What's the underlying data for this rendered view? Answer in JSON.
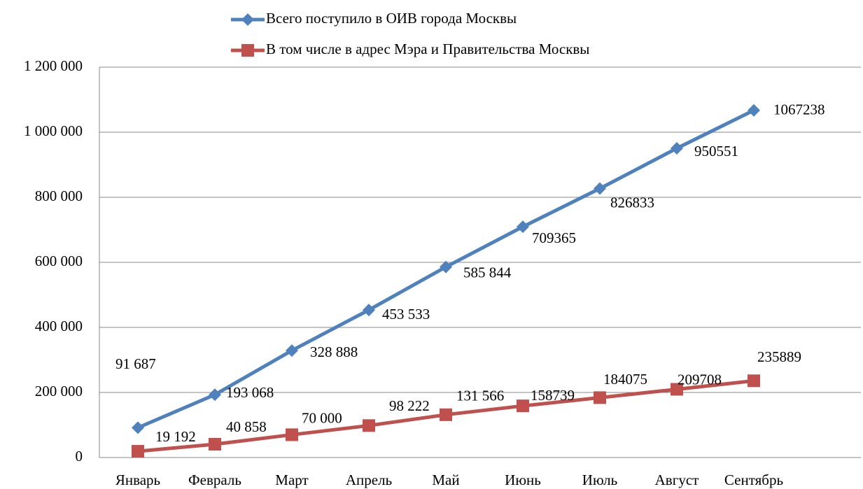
{
  "chart_data": {
    "type": "line",
    "categories": [
      "Январь",
      "Февраль",
      "Март",
      "Апрель",
      "Май",
      "Июнь",
      "Июль",
      "Август",
      "Сентябрь"
    ],
    "series": [
      {
        "name": "Всего поступило в ОИВ города Москвы",
        "color": "#4f81bd",
        "marker": "diamond",
        "values": [
          91687,
          193068,
          328888,
          453533,
          585844,
          709365,
          826833,
          950551,
          1067238
        ],
        "value_labels": [
          "91 687",
          "193 068",
          "328 888",
          "453 533",
          "585 844",
          "709365",
          "826833",
          "950551",
          "1067238"
        ]
      },
      {
        "name": "В том числе в адрес Мэра и Правительства Москвы",
        "color": "#c0504d",
        "marker": "square",
        "values": [
          19192,
          40858,
          70000,
          98222,
          131566,
          158739,
          184075,
          209708,
          235889
        ],
        "value_labels": [
          "19 192",
          "40 858",
          "70 000",
          "98 222",
          "131 566",
          "158739",
          "184075",
          "209708",
          "235889"
        ]
      }
    ],
    "ylim": [
      0,
      1200000
    ],
    "yticks": [
      0,
      {
        "value": 200000,
        "label": "200 000"
      },
      {
        "value": 400000,
        "label": "400 000"
      },
      {
        "value": 600000,
        "label": "600 000"
      },
      {
        "value": 800000,
        "label": "800 000"
      },
      {
        "value": 1000000,
        "label": "1 000 000"
      },
      {
        "value": 1200000,
        "label": "1 200 000"
      }
    ],
    "grid": true,
    "legend": "top"
  }
}
